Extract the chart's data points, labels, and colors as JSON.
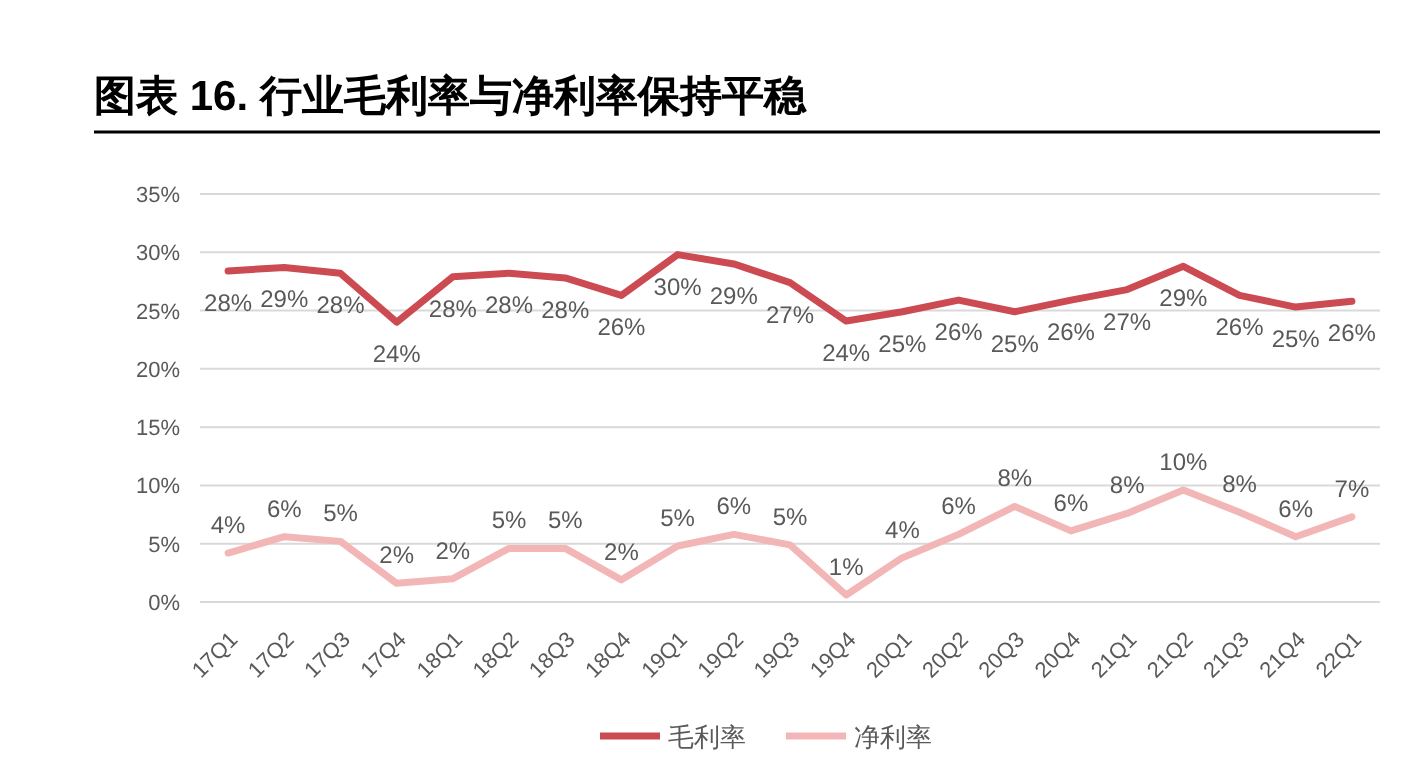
{
  "chart_data": {
    "type": "line",
    "title": "图表 16. 行业毛利率与净利率保持平稳",
    "categories": [
      "17Q1",
      "17Q2",
      "17Q3",
      "17Q4",
      "18Q1",
      "18Q2",
      "18Q3",
      "18Q4",
      "19Q1",
      "19Q2",
      "19Q3",
      "19Q4",
      "20Q1",
      "20Q2",
      "20Q3",
      "20Q4",
      "21Q1",
      "21Q2",
      "21Q3",
      "21Q4",
      "22Q1"
    ],
    "series": [
      {
        "name": "毛利率",
        "color": "#cc4b52",
        "values": [
          28.4,
          28.7,
          28.2,
          24.0,
          27.9,
          28.2,
          27.8,
          26.3,
          29.8,
          29.0,
          27.4,
          24.1,
          24.9,
          25.9,
          24.9,
          25.9,
          26.8,
          28.8,
          26.3,
          25.3,
          25.8
        ],
        "value_labels": [
          "28%",
          "29%",
          "28%",
          "24%",
          "28%",
          "28%",
          "28%",
          "26%",
          "30%",
          "29%",
          "27%",
          "24%",
          "25%",
          "26%",
          "25%",
          "26%",
          "27%",
          "29%",
          "26%",
          "25%",
          "26%"
        ]
      },
      {
        "name": "净利率",
        "color": "#f2b6b6",
        "values": [
          4.2,
          5.6,
          5.2,
          1.6,
          2.0,
          4.6,
          4.6,
          1.9,
          4.8,
          5.8,
          4.9,
          0.6,
          3.8,
          5.8,
          8.2,
          6.1,
          7.6,
          9.6,
          7.7,
          5.6,
          7.3
        ],
        "value_labels": [
          "4%",
          "6%",
          "5%",
          "2%",
          "2%",
          "5%",
          "5%",
          "2%",
          "5%",
          "6%",
          "5%",
          "1%",
          "4%",
          "6%",
          "8%",
          "6%",
          "8%",
          "10%",
          "8%",
          "6%",
          "7%"
        ]
      }
    ],
    "ylim": [
      0,
      35
    ],
    "yticks": [
      {
        "value": 0,
        "label": "0%"
      },
      {
        "value": 5,
        "label": "5%"
      },
      {
        "value": 10,
        "label": "10%"
      },
      {
        "value": 15,
        "label": "15%"
      },
      {
        "value": 20,
        "label": "20%"
      },
      {
        "value": 25,
        "label": "25%"
      },
      {
        "value": 30,
        "label": "30%"
      },
      {
        "value": 35,
        "label": "35%"
      }
    ],
    "grid": "y",
    "legend": "bottom",
    "marker": "none",
    "line_style": "solid"
  }
}
